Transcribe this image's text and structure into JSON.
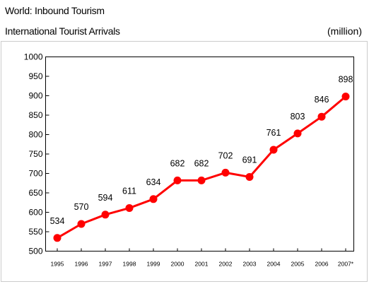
{
  "header": {
    "title": "World: Inbound Tourism",
    "subtitle": "International Tourist Arrivals",
    "unit": "(million)"
  },
  "colors": {
    "series": "#ff0000",
    "frame": "#000000",
    "outer_frame": "#cccccc"
  },
  "chart_data": {
    "type": "line",
    "title": "World: Inbound Tourism",
    "subtitle": "International Tourist Arrivals",
    "ylabel": "(million)",
    "xlabel": "",
    "categories": [
      "1995",
      "1996",
      "1997",
      "1998",
      "1999",
      "2000",
      "2001",
      "2002",
      "2003",
      "2004",
      "2005",
      "2006",
      "2007*"
    ],
    "series": [
      {
        "values": [
          534,
          570,
          594,
          611,
          634,
          682,
          682,
          702,
          691,
          761,
          803,
          846,
          898
        ]
      }
    ],
    "data_labels": [
      "534",
      "570",
      "594",
      "611",
      "634",
      "682",
      "682",
      "702",
      "691",
      "761",
      "803",
      "846",
      "898"
    ],
    "yticks": [
      "500",
      "550",
      "600",
      "650",
      "700",
      "750",
      "800",
      "850",
      "900",
      "950",
      "1000"
    ],
    "ylim": [
      500,
      1000
    ],
    "grid": false,
    "legend": "none"
  }
}
